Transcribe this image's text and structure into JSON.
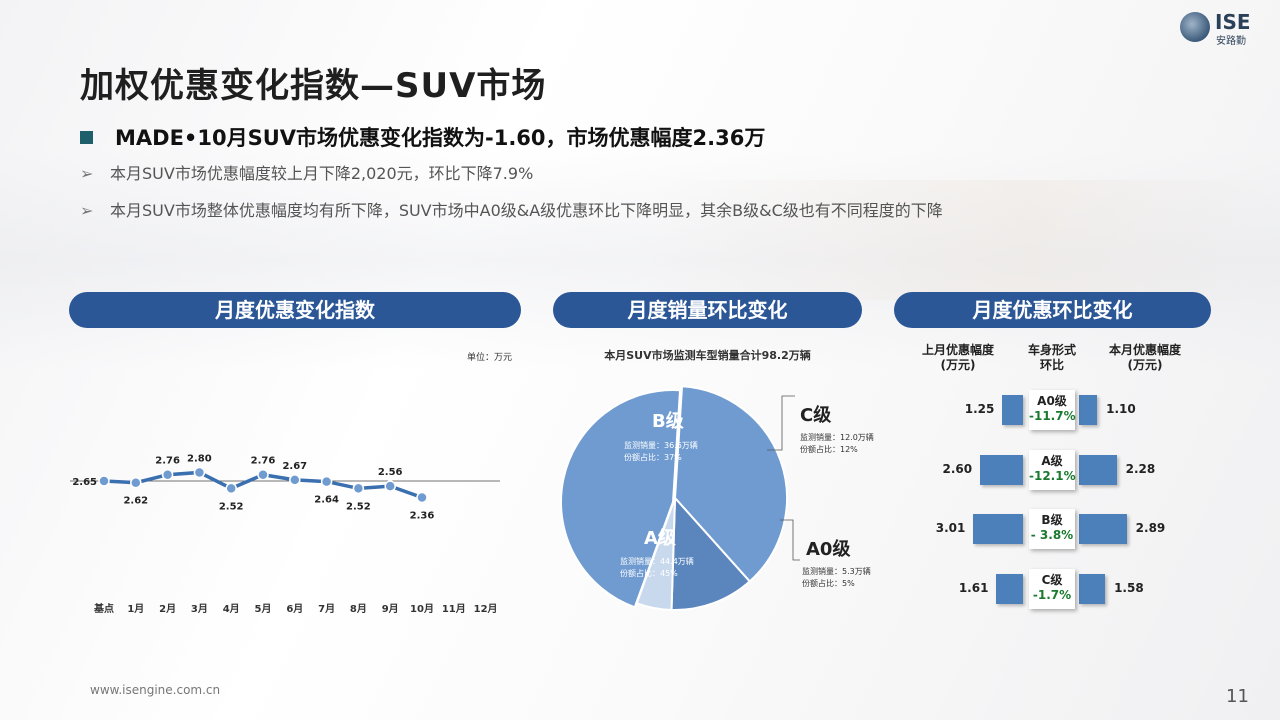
{
  "title": "加权优惠变化指数—SUV市场",
  "logo": {
    "text": "ISE",
    "subtext": "安路勤"
  },
  "headline": "MADE•10月SUV市场优惠变化指数为-1.60，市场优惠幅度2.36万",
  "bullets": [
    "本月SUV市场优惠幅度较上月下降2,020元，环比下降7.9%",
    "本月SUV市场整体优惠幅度均有所下降，SUV市场中A0级&A级优惠环比下降明显，其余B级&C级也有不同程度的下降"
  ],
  "section_titles": [
    "月度优惠变化指数",
    "月度销量环比变化",
    "月度优惠环比变化"
  ],
  "footer": "www.isengine.com.cn",
  "page_number": "11",
  "colors": {
    "accent": "#2b5797",
    "line": "#3a6fb0",
    "pie_dark": "#5b86bd",
    "pie_mid": "#6f9bd0",
    "pie_light": "#c8d9ee",
    "bar": "#4c80ba",
    "green": "#1a7a2e"
  },
  "chart_data": [
    {
      "type": "line",
      "unit_label": "单位：万元",
      "categories": [
        "基点",
        "1月",
        "2月",
        "3月",
        "4月",
        "5月",
        "6月",
        "7月",
        "8月",
        "9月",
        "10月",
        "11月",
        "12月"
      ],
      "values": [
        2.65,
        2.62,
        2.76,
        2.8,
        2.52,
        2.76,
        2.67,
        2.64,
        2.52,
        2.56,
        2.36,
        null,
        null
      ],
      "labels": [
        "2.65",
        "2.62",
        "2.76",
        "2.80",
        "2.52",
        "2.76",
        "2.67",
        "2.64",
        "2.52",
        "2.56",
        "2.36",
        "",
        ""
      ],
      "baseline": 2.65
    },
    {
      "type": "pie",
      "title": "本月SUV市场监测车型销量合计98.2万辆",
      "slices": [
        {
          "name": "B级",
          "value": 37,
          "detail1": "监测销量：36.6万辆",
          "detail2": "份额占比：37%"
        },
        {
          "name": "C级",
          "value": 12,
          "detail1": "监测销量：12.0万辆",
          "detail2": "份额占比：12%"
        },
        {
          "name": "A0级",
          "value": 5,
          "detail1": "监测销量：5.3万辆",
          "detail2": "份额占比：5%"
        },
        {
          "name": "A级",
          "value": 45,
          "detail1": "监测销量：44.4万辆",
          "detail2": "份额占比：45%"
        }
      ]
    },
    {
      "type": "bar",
      "headers": [
        "上月优惠幅度\n(万元)",
        "车身形式\n环比",
        "本月优惠幅度\n(万元)"
      ],
      "header_lines": [
        [
          "上月优惠幅度",
          "(万元)"
        ],
        [
          "车身形式",
          "环比"
        ],
        [
          "本月优惠幅度",
          "(万元)"
        ]
      ],
      "rows": [
        {
          "name": "A0级",
          "last": 1.25,
          "last_label": "1.25",
          "current": 1.1,
          "current_label": "1.10",
          "change": "-11.7%"
        },
        {
          "name": "A级",
          "last": 2.6,
          "last_label": "2.60",
          "current": 2.28,
          "current_label": "2.28",
          "change": "-12.1%"
        },
        {
          "name": "B级",
          "last": 3.01,
          "last_label": "3.01",
          "current": 2.89,
          "current_label": "2.89",
          "change": "- 3.8%"
        },
        {
          "name": "C级",
          "last": 1.61,
          "last_label": "1.61",
          "current": 1.58,
          "current_label": "1.58",
          "change": "-1.7%"
        }
      ]
    }
  ]
}
